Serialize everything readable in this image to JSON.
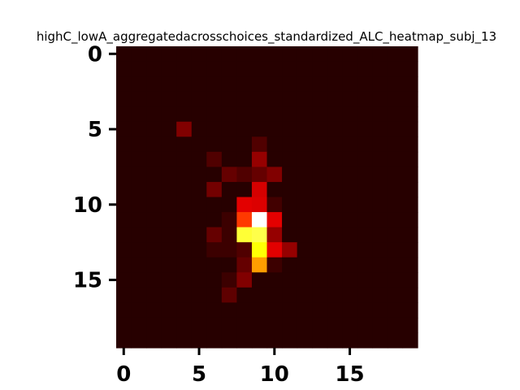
{
  "chart_data": {
    "type": "heatmap",
    "title": "highC_lowA_aggregatedacrosschoices_standardized_ALC_heatmap_subj_13",
    "colormap": "hot",
    "rows": 20,
    "cols": 20,
    "value_range": [
      0,
      1
    ],
    "x_ticks": [
      0,
      5,
      10,
      15
    ],
    "y_ticks": [
      0,
      5,
      10,
      15
    ],
    "x_tick_labels": [
      "0",
      "5",
      "10",
      "15"
    ],
    "y_tick_labels": [
      "0",
      "5",
      "10",
      "15"
    ],
    "grid": false,
    "background_value": 0.04,
    "cells": [
      {
        "row": 5,
        "col": 4,
        "value": 0.17
      },
      {
        "row": 6,
        "col": 9,
        "value": 0.1
      },
      {
        "row": 7,
        "col": 6,
        "value": 0.1
      },
      {
        "row": 7,
        "col": 9,
        "value": 0.2
      },
      {
        "row": 8,
        "col": 7,
        "value": 0.13
      },
      {
        "row": 8,
        "col": 8,
        "value": 0.1
      },
      {
        "row": 8,
        "col": 9,
        "value": 0.13
      },
      {
        "row": 8,
        "col": 10,
        "value": 0.17
      },
      {
        "row": 9,
        "col": 6,
        "value": 0.15
      },
      {
        "row": 9,
        "col": 9,
        "value": 0.29
      },
      {
        "row": 10,
        "col": 8,
        "value": 0.31
      },
      {
        "row": 10,
        "col": 9,
        "value": 0.3
      },
      {
        "row": 10,
        "col": 10,
        "value": 0.08
      },
      {
        "row": 11,
        "col": 7,
        "value": 0.07
      },
      {
        "row": 11,
        "col": 8,
        "value": 0.45
      },
      {
        "row": 11,
        "col": 9,
        "value": 1.0
      },
      {
        "row": 11,
        "col": 10,
        "value": 0.31
      },
      {
        "row": 12,
        "col": 6,
        "value": 0.13
      },
      {
        "row": 12,
        "col": 7,
        "value": 0.07
      },
      {
        "row": 12,
        "col": 8,
        "value": 0.8
      },
      {
        "row": 12,
        "col": 9,
        "value": 0.82
      },
      {
        "row": 12,
        "col": 10,
        "value": 0.2
      },
      {
        "row": 13,
        "col": 6,
        "value": 0.07
      },
      {
        "row": 13,
        "col": 7,
        "value": 0.07
      },
      {
        "row": 13,
        "col": 8,
        "value": 0.1
      },
      {
        "row": 13,
        "col": 9,
        "value": 0.75
      },
      {
        "row": 13,
        "col": 10,
        "value": 0.31
      },
      {
        "row": 13,
        "col": 11,
        "value": 0.2
      },
      {
        "row": 14,
        "col": 8,
        "value": 0.13
      },
      {
        "row": 14,
        "col": 9,
        "value": 0.6
      },
      {
        "row": 14,
        "col": 10,
        "value": 0.07
      },
      {
        "row": 15,
        "col": 7,
        "value": 0.07
      },
      {
        "row": 15,
        "col": 8,
        "value": 0.17
      },
      {
        "row": 16,
        "col": 7,
        "value": 0.12
      }
    ]
  }
}
